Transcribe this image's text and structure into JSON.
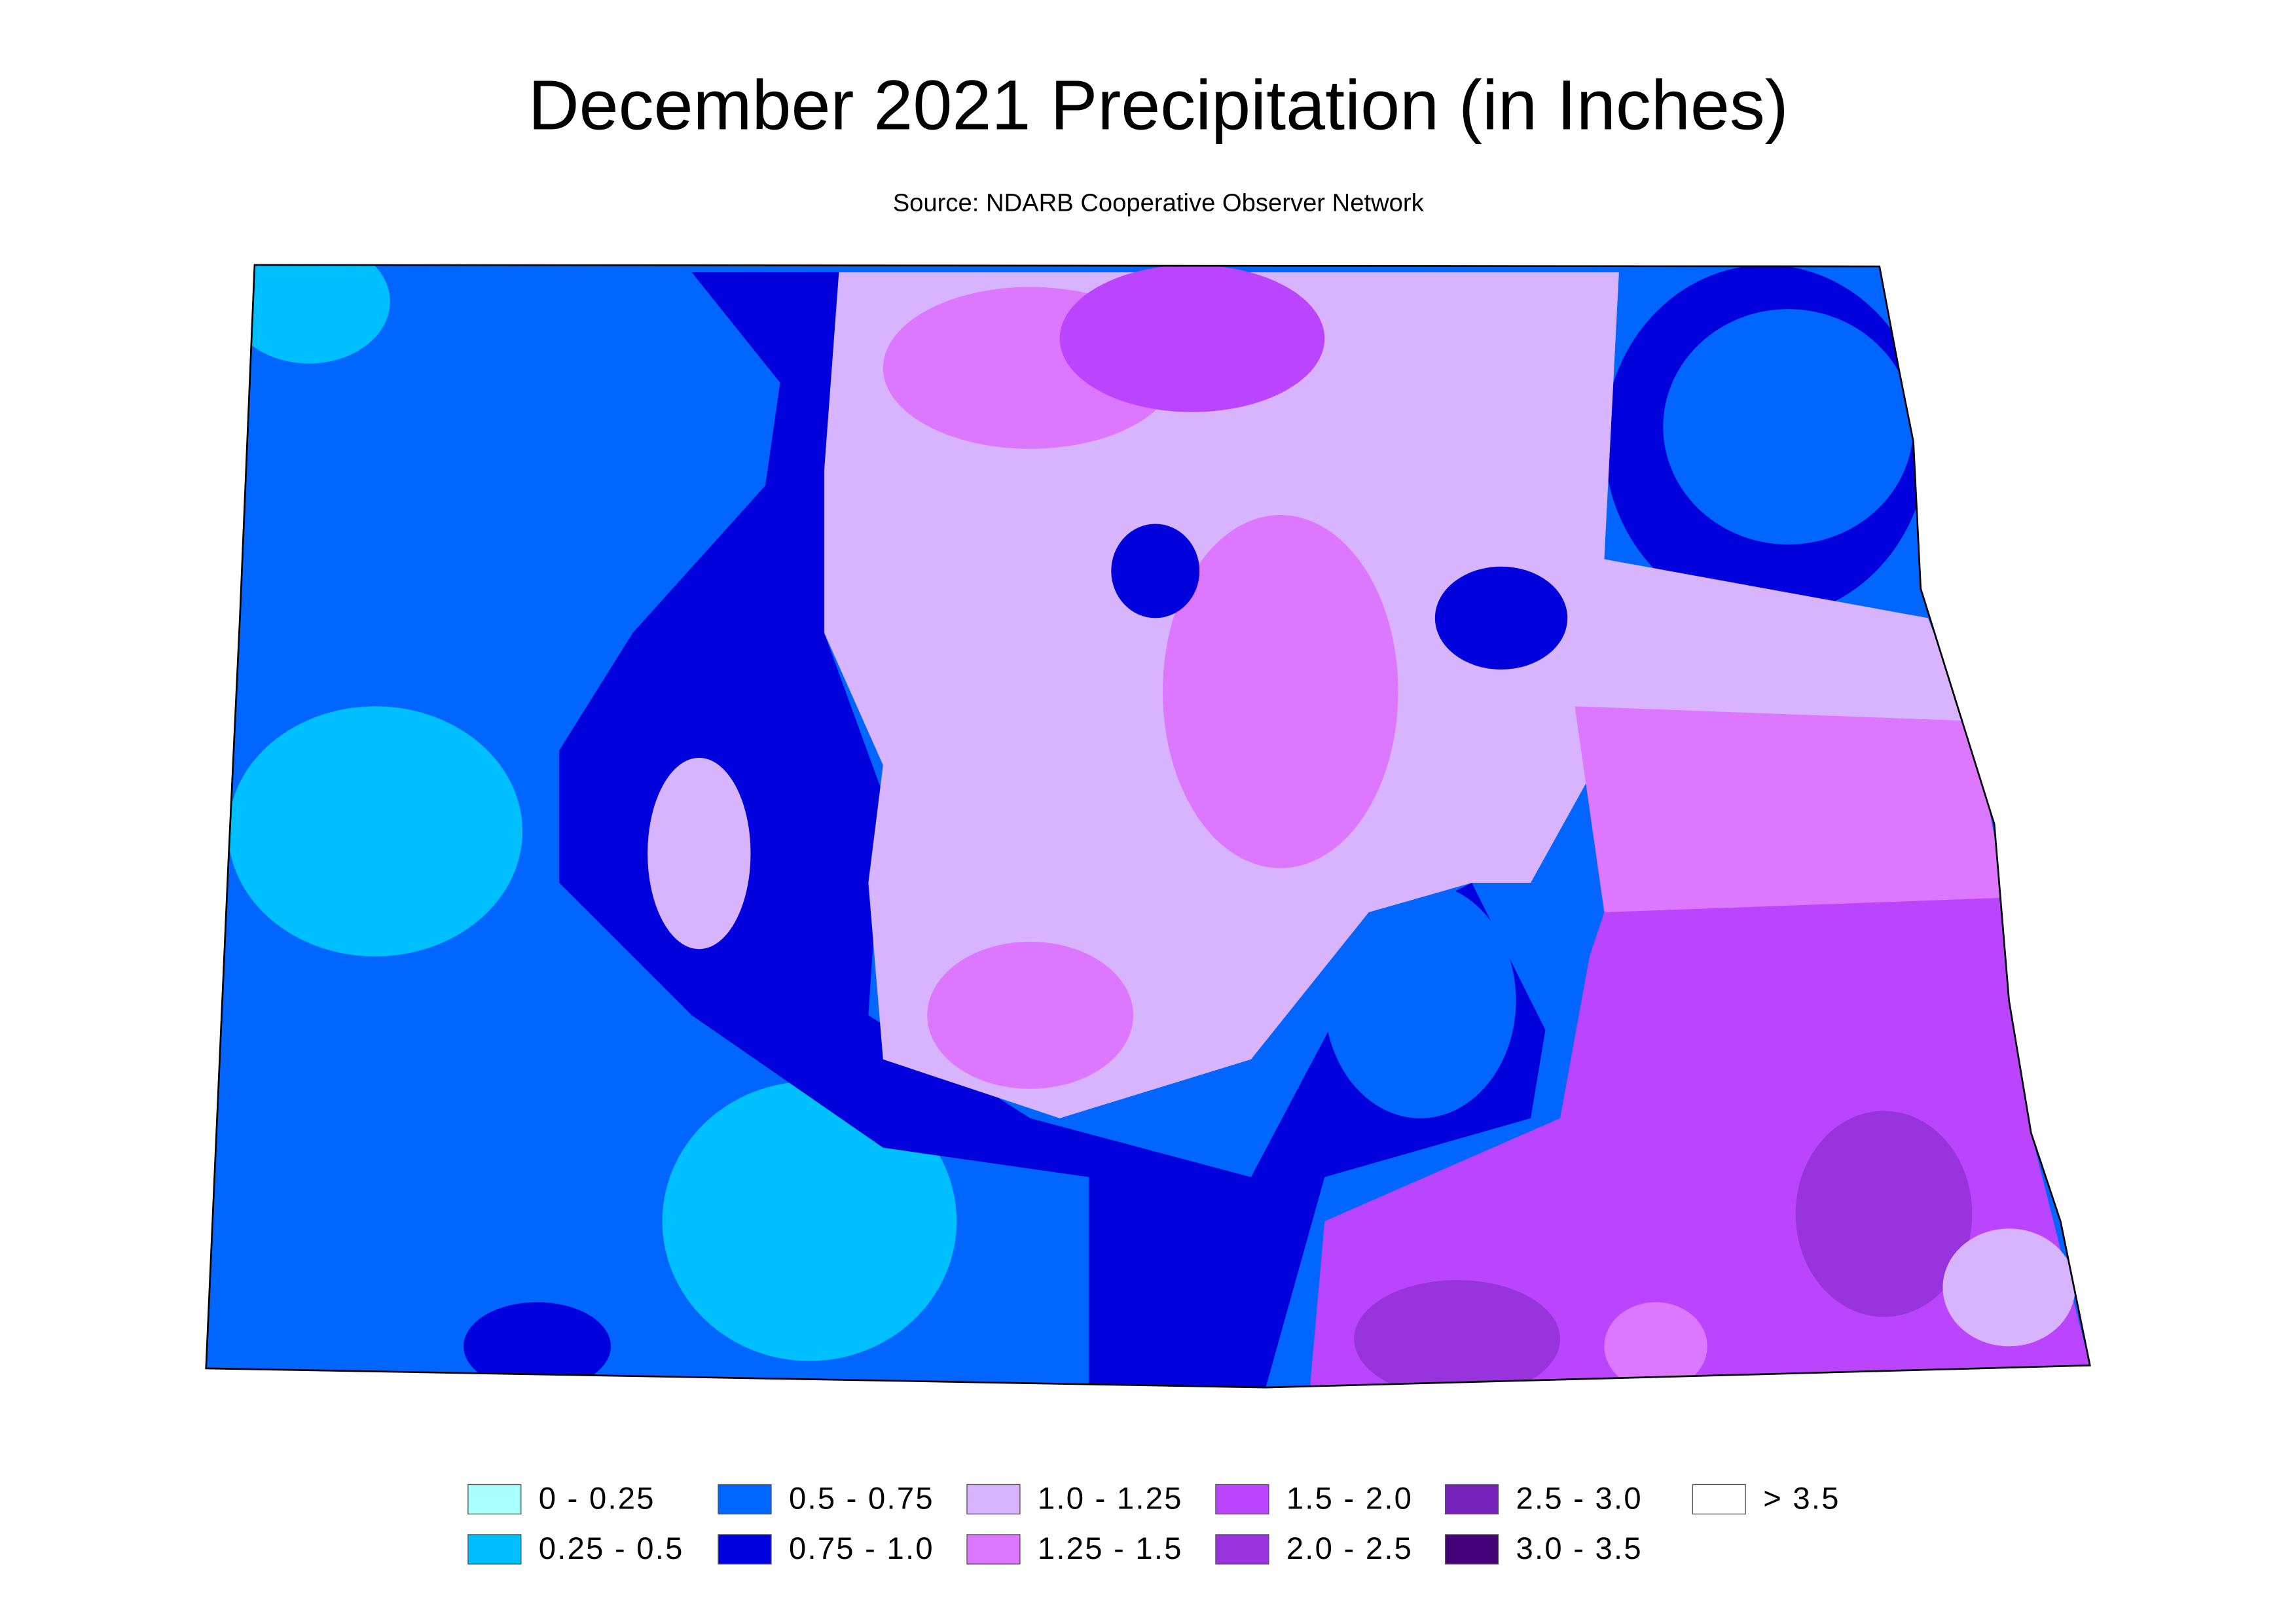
{
  "title": "December 2021 Precipitation (in Inches)",
  "subtitle": "Source: NDARB Cooperative Observer Network",
  "legend": [
    {
      "label": "0 - 0.25",
      "color": "#aaffff"
    },
    {
      "label": "0.25 - 0.5",
      "color": "#00bfff"
    },
    {
      "label": "0.5 - 0.75",
      "color": "#0066ff"
    },
    {
      "label": "0.75 - 1.0",
      "color": "#0000dd"
    },
    {
      "label": "1.0 - 1.25",
      "color": "#d8b4fe"
    },
    {
      "label": "1.25 - 1.5",
      "color": "#dd77ff"
    },
    {
      "label": "1.5 - 2.0",
      "color": "#bb44ff"
    },
    {
      "label": "2.0 - 2.5",
      "color": "#9933dd"
    },
    {
      "label": "2.5 - 3.0",
      "color": "#7722bb"
    },
    {
      "label": "3.0 - 3.5",
      "color": "#440077"
    },
    {
      "label": ">  3.5",
      "color": "#ffffff"
    }
  ]
}
